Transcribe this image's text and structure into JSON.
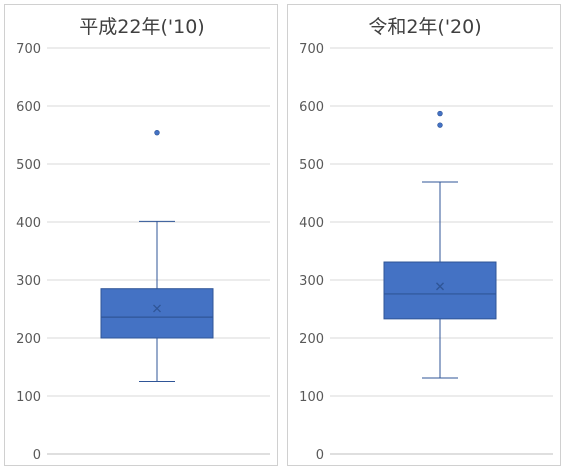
{
  "colors": {
    "box_fill": "#4472C4",
    "box_stroke": "#2F5597",
    "whisker": "#2F5597",
    "gridline": "#d9d9d9",
    "axis_text": "#595959",
    "title_text": "#404040"
  },
  "chart_data": [
    {
      "type": "box",
      "title": "平成22年('10)",
      "ylim": [
        0,
        700
      ],
      "yticks": [
        "0",
        "100",
        "200",
        "300",
        "400",
        "500",
        "600",
        "700"
      ],
      "grid": true,
      "min": 125,
      "q1": 200,
      "median": 236,
      "mean": 251,
      "q3": 285,
      "max": 401,
      "outliers": [
        554
      ]
    },
    {
      "type": "box",
      "title": "令和2年('20)",
      "ylim": [
        0,
        700
      ],
      "yticks": [
        "0",
        "100",
        "200",
        "300",
        "400",
        "500",
        "600",
        "700"
      ],
      "grid": true,
      "min": 131,
      "q1": 233,
      "median": 276,
      "mean": 289,
      "q3": 331,
      "max": 469,
      "outliers": [
        567,
        587
      ]
    }
  ]
}
